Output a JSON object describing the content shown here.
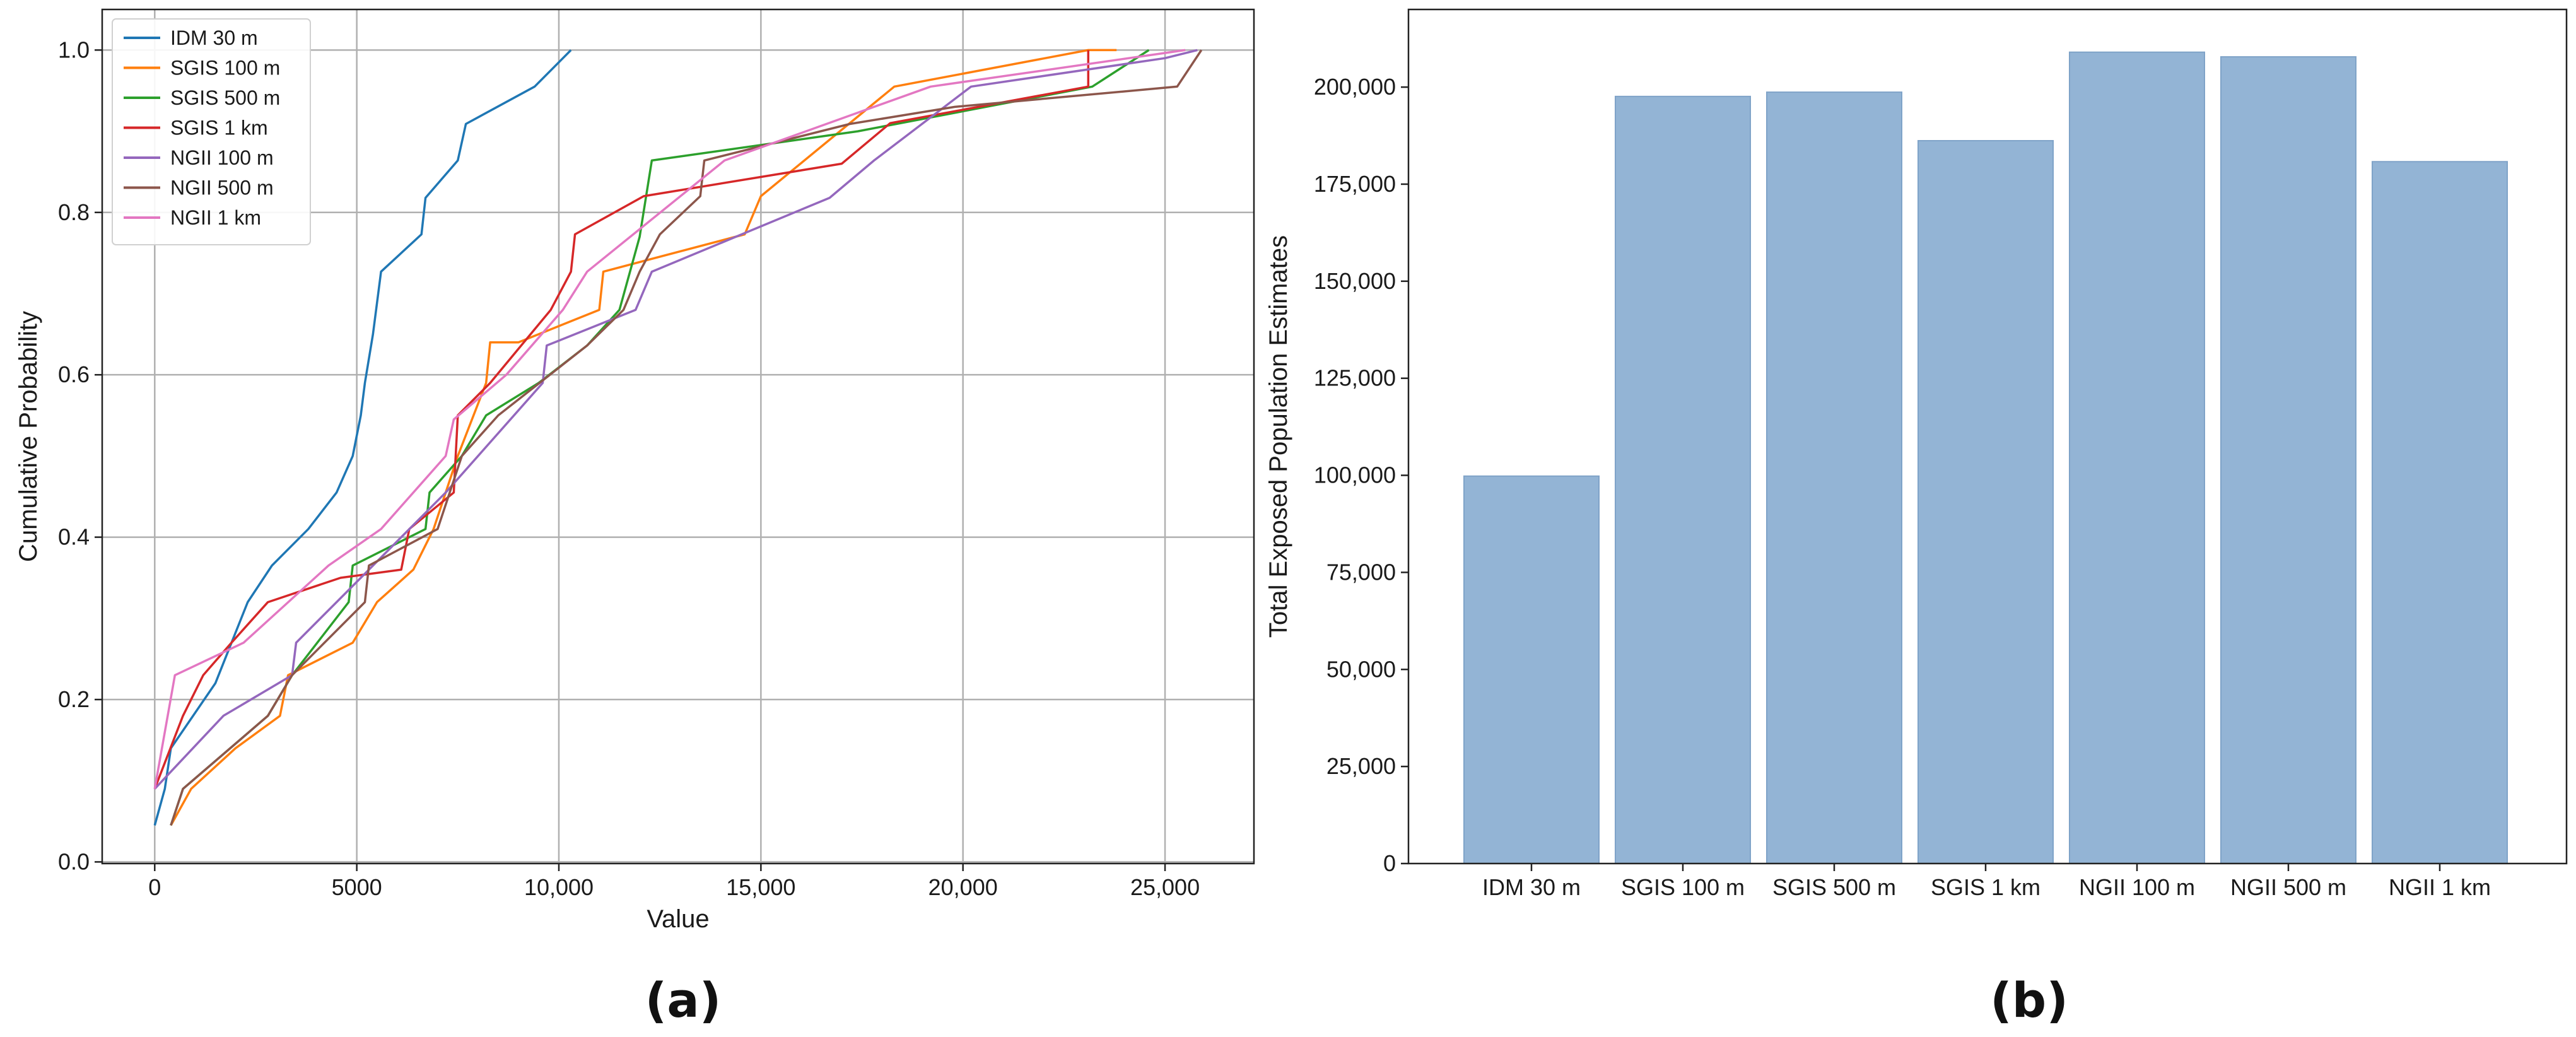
{
  "chart_data": [
    {
      "type": "line",
      "panel_label": "(a)",
      "title": "",
      "xlabel": "Value",
      "ylabel": "Cumulative Probability",
      "xlim": [
        -1300,
        27200
      ],
      "ylim": [
        -0.002,
        1.05
      ],
      "xticks": [
        0,
        5000,
        10000,
        15000,
        20000,
        25000
      ],
      "xtick_labels": [
        "0",
        "5000",
        "10,000",
        "15,000",
        "20,000",
        "25,000"
      ],
      "yticks": [
        0.0,
        0.2,
        0.4,
        0.6,
        0.8,
        1.0
      ],
      "ytick_labels": [
        "0.0",
        "0.2",
        "0.4",
        "0.6",
        "0.8",
        "1.0"
      ],
      "grid": true,
      "legend_position": "top-left",
      "series": [
        {
          "name": "IDM 30 m",
          "color": "#1f77b4",
          "points": [
            [
              0,
              0.045
            ],
            [
              250,
              0.09
            ],
            [
              400,
              0.14
            ],
            [
              1500,
              0.22
            ],
            [
              2300,
              0.32
            ],
            [
              2900,
              0.365
            ],
            [
              3800,
              0.41
            ],
            [
              4500,
              0.455
            ],
            [
              4900,
              0.5
            ],
            [
              5100,
              0.55
            ],
            [
              5200,
              0.59
            ],
            [
              5400,
              0.65
            ],
            [
              5600,
              0.727
            ],
            [
              6600,
              0.773
            ],
            [
              6700,
              0.818
            ],
            [
              7500,
              0.864
            ],
            [
              7700,
              0.909
            ],
            [
              9400,
              0.955
            ],
            [
              10300,
              1.0
            ]
          ]
        },
        {
          "name": "SGIS 100 m",
          "color": "#ff7f0e",
          "points": [
            [
              400,
              0.045
            ],
            [
              900,
              0.09
            ],
            [
              2000,
              0.14
            ],
            [
              3100,
              0.18
            ],
            [
              3300,
              0.23
            ],
            [
              4900,
              0.27
            ],
            [
              5500,
              0.32
            ],
            [
              6400,
              0.36
            ],
            [
              6900,
              0.41
            ],
            [
              7500,
              0.5
            ],
            [
              8200,
              0.59
            ],
            [
              8300,
              0.64
            ],
            [
              9000,
              0.64
            ],
            [
              11000,
              0.68
            ],
            [
              11100,
              0.727
            ],
            [
              14600,
              0.773
            ],
            [
              15000,
              0.82
            ],
            [
              18300,
              0.955
            ],
            [
              23100,
              1.0
            ],
            [
              23800,
              1.0
            ]
          ]
        },
        {
          "name": "SGIS 500 m",
          "color": "#2ca02c",
          "points": [
            [
              400,
              0.045
            ],
            [
              700,
              0.09
            ],
            [
              2800,
              0.18
            ],
            [
              3400,
              0.23
            ],
            [
              4800,
              0.32
            ],
            [
              4900,
              0.365
            ],
            [
              6700,
              0.41
            ],
            [
              6800,
              0.455
            ],
            [
              7600,
              0.5
            ],
            [
              8200,
              0.55
            ],
            [
              9500,
              0.59
            ],
            [
              10700,
              0.636
            ],
            [
              11500,
              0.68
            ],
            [
              12000,
              0.77
            ],
            [
              12300,
              0.864
            ],
            [
              17400,
              0.9
            ],
            [
              23200,
              0.955
            ],
            [
              24600,
              1.0
            ]
          ]
        },
        {
          "name": "SGIS 1 km",
          "color": "#d62728",
          "points": [
            [
              0,
              0.09
            ],
            [
              700,
              0.18
            ],
            [
              1200,
              0.23
            ],
            [
              1900,
              0.27
            ],
            [
              2800,
              0.32
            ],
            [
              4600,
              0.35
            ],
            [
              6100,
              0.36
            ],
            [
              6300,
              0.41
            ],
            [
              7400,
              0.455
            ],
            [
              7500,
              0.55
            ],
            [
              8300,
              0.59
            ],
            [
              9800,
              0.68
            ],
            [
              10300,
              0.727
            ],
            [
              10400,
              0.773
            ],
            [
              12100,
              0.82
            ],
            [
              17000,
              0.86
            ],
            [
              18200,
              0.91
            ],
            [
              23100,
              0.955
            ],
            [
              23100,
              1.0
            ]
          ]
        },
        {
          "name": "NGII 100 m",
          "color": "#9467bd",
          "points": [
            [
              0,
              0.09
            ],
            [
              1700,
              0.18
            ],
            [
              3400,
              0.23
            ],
            [
              3500,
              0.27
            ],
            [
              4500,
              0.32
            ],
            [
              7200,
              0.455
            ],
            [
              9600,
              0.59
            ],
            [
              9700,
              0.636
            ],
            [
              11900,
              0.68
            ],
            [
              12300,
              0.727
            ],
            [
              16700,
              0.818
            ],
            [
              17800,
              0.864
            ],
            [
              20200,
              0.955
            ],
            [
              25000,
              0.99
            ],
            [
              25800,
              1.0
            ]
          ]
        },
        {
          "name": "NGII 500 m",
          "color": "#8c564b",
          "points": [
            [
              400,
              0.045
            ],
            [
              700,
              0.09
            ],
            [
              2800,
              0.18
            ],
            [
              3400,
              0.23
            ],
            [
              4200,
              0.27
            ],
            [
              5200,
              0.32
            ],
            [
              5300,
              0.365
            ],
            [
              7000,
              0.41
            ],
            [
              7600,
              0.5
            ],
            [
              8500,
              0.55
            ],
            [
              10700,
              0.636
            ],
            [
              11600,
              0.68
            ],
            [
              12000,
              0.727
            ],
            [
              12500,
              0.773
            ],
            [
              13500,
              0.82
            ],
            [
              13600,
              0.864
            ],
            [
              17200,
              0.909
            ],
            [
              19800,
              0.93
            ],
            [
              25300,
              0.955
            ],
            [
              25900,
              1.0
            ]
          ]
        },
        {
          "name": "NGII 1 km",
          "color": "#e377c2",
          "points": [
            [
              0,
              0.09
            ],
            [
              500,
              0.23
            ],
            [
              2200,
              0.27
            ],
            [
              4300,
              0.365
            ],
            [
              5600,
              0.41
            ],
            [
              7200,
              0.5
            ],
            [
              7400,
              0.545
            ],
            [
              8700,
              0.6
            ],
            [
              10100,
              0.68
            ],
            [
              10700,
              0.727
            ],
            [
              14100,
              0.864
            ],
            [
              19200,
              0.955
            ],
            [
              25500,
              1.0
            ]
          ]
        }
      ]
    },
    {
      "type": "bar",
      "panel_label": "(b)",
      "title": "",
      "xlabel": "",
      "ylabel": "Total Exposed Population Estimates",
      "ylim": [
        0,
        220000
      ],
      "yticks": [
        0,
        25000,
        50000,
        75000,
        100000,
        125000,
        150000,
        175000,
        200000
      ],
      "ytick_labels": [
        "0",
        "25,000",
        "50,000",
        "75,000",
        "100,000",
        "125,000",
        "150,000",
        "175,000",
        "200,000"
      ],
      "grid": false,
      "bar_color": "#93b4d5",
      "bar_edge_color": "#7fa3c8",
      "categories": [
        "IDM 30 m",
        "SGIS 100 m",
        "SGIS 500 m",
        "SGIS 1 km",
        "NGII 100 m",
        "NGII 500 m",
        "NGII 1 km"
      ],
      "values": [
        99800,
        197600,
        198700,
        186200,
        209000,
        207800,
        180800
      ]
    }
  ]
}
